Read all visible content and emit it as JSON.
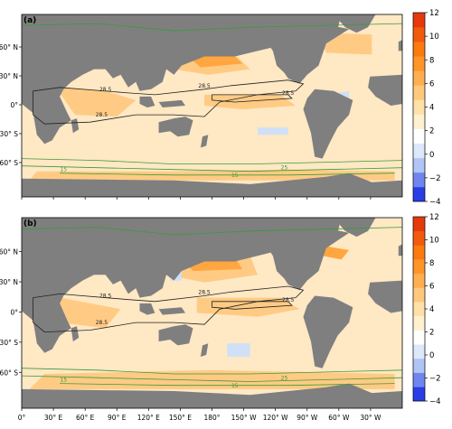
{
  "chart_data": [
    {
      "type": "heatmap",
      "panel_label": "(a)",
      "lat_ticks": [
        "60° N",
        "30° N",
        "0°",
        "30° S",
        "60° S"
      ],
      "lon_ticks": [],
      "colorbar": {
        "ticks": [
          "12",
          "10",
          "8",
          "6",
          "4",
          "2",
          "0",
          "−2",
          "−4"
        ],
        "range": [
          -4,
          12
        ],
        "colors": [
          "#2a3ee6",
          "#6f86f0",
          "#b0c4f6",
          "#dde8fb",
          "#ffffff",
          "#fff1cf",
          "#ffe1a8",
          "#ffc87c",
          "#ffae50",
          "#ff9428",
          "#fa7a10",
          "#f25a0c",
          "#e63a0b"
        ]
      },
      "contour_labels": [
        "28.5",
        "28.5",
        "28.5",
        "28.5",
        "15",
        "15",
        "25"
      ]
    },
    {
      "type": "heatmap",
      "panel_label": "(b)",
      "lat_ticks": [
        "60° N",
        "30° N",
        "0°",
        "30° S",
        "60° S"
      ],
      "lon_ticks": [
        "0°",
        "30° E",
        "60° E",
        "90° E",
        "120° E",
        "150° E",
        "180°",
        "150° W",
        "120° W",
        "90° W",
        "60° W",
        "30° W"
      ],
      "colorbar": {
        "ticks": [
          "12",
          "10",
          "8",
          "6",
          "4",
          "2",
          "0",
          "−2",
          "−4"
        ],
        "range": [
          -4,
          12
        ],
        "colors": [
          "#2a3ee6",
          "#6f86f0",
          "#b0c4f6",
          "#dde8fb",
          "#ffffff",
          "#fff1cf",
          "#ffe1a8",
          "#ffc87c",
          "#ffae50",
          "#ff9428",
          "#fa7a10",
          "#f25a0c",
          "#e63a0b"
        ]
      },
      "contour_labels": [
        "28.5",
        "28.5",
        "28.5",
        "28.5",
        "15",
        "15",
        "25"
      ]
    }
  ],
  "colors": {
    "land": "#7f7f7f",
    "ocean_base": "#ffe8c4",
    "warm_patch": "#ffcb84",
    "strong_warm": "#ffa640",
    "hot": "#f47a1c",
    "peak": "#e3430f",
    "cool": "#cfe0f7",
    "cold": "#3c52e0",
    "contour_tropical": "#222222",
    "contour_green": "#3a9a3a"
  }
}
